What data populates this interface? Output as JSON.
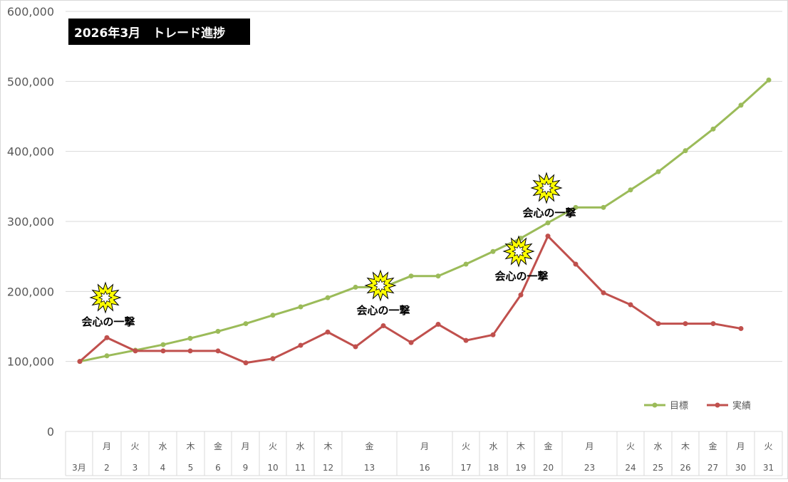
{
  "chart_data": {
    "type": "line",
    "title": "2026年3月　トレード進捗",
    "xlabel": "",
    "ylabel": "",
    "ylim": [
      0,
      600000
    ],
    "yticks": [
      "600,000",
      "500,000",
      "400,000",
      "300,000",
      "200,000",
      "100,000",
      "0"
    ],
    "grid": true,
    "legend_position": "bottom-right",
    "categories": [
      {
        "day": "",
        "date": "3月"
      },
      {
        "day": "月",
        "date": "2"
      },
      {
        "day": "火",
        "date": "3"
      },
      {
        "day": "水",
        "date": "4"
      },
      {
        "day": "木",
        "date": "5"
      },
      {
        "day": "金",
        "date": "6"
      },
      {
        "day": "月",
        "date": "9"
      },
      {
        "day": "火",
        "date": "10"
      },
      {
        "day": "水",
        "date": "11"
      },
      {
        "day": "木",
        "date": "12"
      },
      {
        "day": "金",
        "date": "13"
      },
      {
        "day": "月",
        "date": "16"
      },
      {
        "day": "火",
        "date": "17"
      },
      {
        "day": "水",
        "date": "18"
      },
      {
        "day": "木",
        "date": "19"
      },
      {
        "day": "金",
        "date": "20"
      },
      {
        "day": "月",
        "date": "23"
      },
      {
        "day": "火",
        "date": "24"
      },
      {
        "day": "水",
        "date": "25"
      },
      {
        "day": "木",
        "date": "26"
      },
      {
        "day": "金",
        "date": "27"
      },
      {
        "day": "月",
        "date": "30"
      },
      {
        "day": "火",
        "date": "31"
      }
    ],
    "series": [
      {
        "name": "目標",
        "color": "#9bbb59",
        "points": [
          [
            0,
            100000
          ],
          [
            1,
            108000
          ],
          [
            2,
            116000
          ],
          [
            3,
            124000
          ],
          [
            4,
            133000
          ],
          [
            5,
            143000
          ],
          [
            6,
            154000
          ],
          [
            7,
            166000
          ],
          [
            8,
            178000
          ],
          [
            9,
            191000
          ],
          [
            10,
            206000
          ],
          [
            10.5,
            206000
          ],
          [
            11,
            222000
          ],
          [
            11.5,
            222000
          ],
          [
            12,
            239000
          ],
          [
            13,
            257000
          ],
          [
            14,
            276000
          ],
          [
            15,
            298000
          ],
          [
            15.5,
            320000
          ],
          [
            16,
            320000
          ],
          [
            17,
            345000
          ],
          [
            18,
            371000
          ],
          [
            19,
            401000
          ],
          [
            20,
            432000
          ],
          [
            21,
            466000
          ],
          [
            22,
            502000
          ]
        ]
      },
      {
        "name": "実績",
        "color": "#c0504d",
        "points": [
          [
            0,
            100000
          ],
          [
            1,
            134000
          ],
          [
            2,
            115000
          ],
          [
            3,
            115000
          ],
          [
            4,
            115000
          ],
          [
            5,
            115000
          ],
          [
            6,
            98000
          ],
          [
            7,
            104000
          ],
          [
            8,
            123000
          ],
          [
            9,
            142000
          ],
          [
            10,
            121000
          ],
          [
            10.5,
            151000
          ],
          [
            11,
            127000
          ],
          [
            11.5,
            153000
          ],
          [
            12,
            130000
          ],
          [
            13,
            138000
          ],
          [
            14,
            195000
          ],
          [
            15,
            279000
          ],
          [
            15.5,
            239000
          ],
          [
            16,
            198000
          ],
          [
            17,
            181000
          ],
          [
            18,
            154000
          ],
          [
            19,
            154000
          ],
          [
            20,
            154000
          ],
          [
            21,
            147000
          ]
        ]
      }
    ],
    "annotations": [
      {
        "text": "会心の一撃",
        "x": 1,
        "y": 134000,
        "icon": "explosion-icon"
      },
      {
        "text": "会心の一撃",
        "x": 10.5,
        "y": 151000,
        "icon": "explosion-icon"
      },
      {
        "text": "会心の一撃",
        "x": 14,
        "y": 276000,
        "icon": "explosion-icon"
      },
      {
        "text": "会心の一撃",
        "x": 15.5,
        "y": 320000,
        "icon": "explosion-icon"
      }
    ]
  }
}
